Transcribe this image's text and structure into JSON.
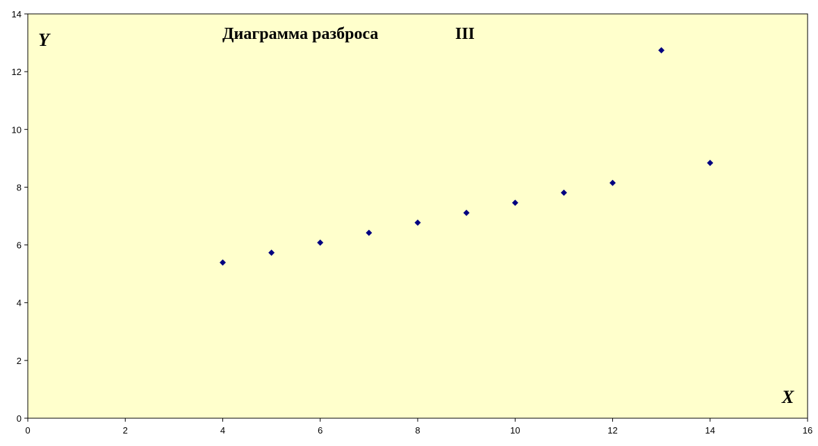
{
  "chart_data": {
    "type": "scatter",
    "title": "Диаграмма разброса",
    "title_suffix": "III",
    "xlabel": "X",
    "ylabel": "Y",
    "xlim": [
      0,
      16
    ],
    "ylim": [
      0,
      14
    ],
    "x_ticks": [
      0,
      2,
      4,
      6,
      8,
      10,
      12,
      14,
      16
    ],
    "y_ticks": [
      0,
      2,
      4,
      6,
      8,
      10,
      12,
      14
    ],
    "grid": false,
    "legend": "none",
    "plot_background": "#FFFFCC",
    "marker_color": "#000080",
    "marker_shape": "diamond",
    "points": [
      {
        "x": 4,
        "y": 5.39
      },
      {
        "x": 5,
        "y": 5.73
      },
      {
        "x": 6,
        "y": 6.08
      },
      {
        "x": 7,
        "y": 6.42
      },
      {
        "x": 8,
        "y": 6.77
      },
      {
        "x": 9,
        "y": 7.11
      },
      {
        "x": 10,
        "y": 7.46
      },
      {
        "x": 11,
        "y": 7.81
      },
      {
        "x": 12,
        "y": 8.15
      },
      {
        "x": 13,
        "y": 12.74
      },
      {
        "x": 14,
        "y": 8.84
      }
    ]
  }
}
